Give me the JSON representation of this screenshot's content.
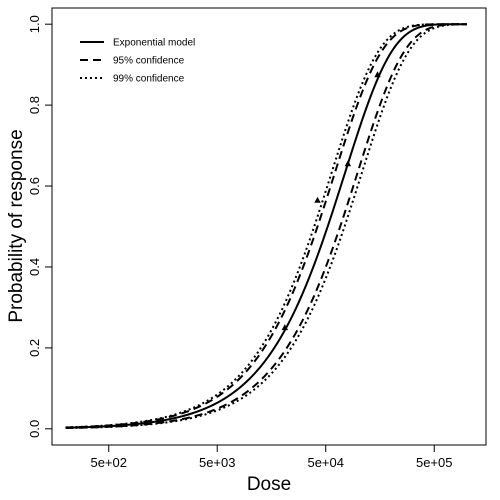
{
  "chart_data": {
    "type": "line",
    "title": "",
    "xlabel": "Dose",
    "ylabel": "Probability of response",
    "x_scale": "log10",
    "xlim": [
      150,
      1500000
    ],
    "ylim": [
      0,
      1
    ],
    "x_ticks": [
      {
        "value": 500,
        "label": "5e+02"
      },
      {
        "value": 5000,
        "label": "5e+03"
      },
      {
        "value": 50000,
        "label": "5e+04"
      },
      {
        "value": 500000,
        "label": "5e+05"
      }
    ],
    "y_ticks": [
      {
        "value": 0.0,
        "label": "0.0"
      },
      {
        "value": 0.2,
        "label": "0.2"
      },
      {
        "value": 0.4,
        "label": "0.4"
      },
      {
        "value": 0.6,
        "label": "0.6"
      },
      {
        "value": 0.8,
        "label": "0.8"
      },
      {
        "value": 1.0,
        "label": "1.0"
      }
    ],
    "grid": false,
    "legend_position": "top-left",
    "series": [
      {
        "name": "Exponential model",
        "style": "solid",
        "model": "exponential",
        "k": 1.33e-05
      },
      {
        "name": "95% confidence",
        "style": "dashed",
        "model": "exponential-band",
        "k_low": 1.02e-05,
        "k_high": 1.65e-05
      },
      {
        "name": "99% confidence",
        "style": "dotted",
        "model": "exponential-band",
        "k_low": 9.3e-06,
        "k_high": 1.77e-05
      }
    ],
    "observed_points": [
      {
        "x": 21000,
        "y": 0.25
      },
      {
        "x": 42000,
        "y": 0.565
      },
      {
        "x": 80000,
        "y": 0.655
      },
      {
        "x": 150000,
        "y": 0.875
      }
    ],
    "x_range_plotted": [
      200,
      1000000
    ]
  }
}
